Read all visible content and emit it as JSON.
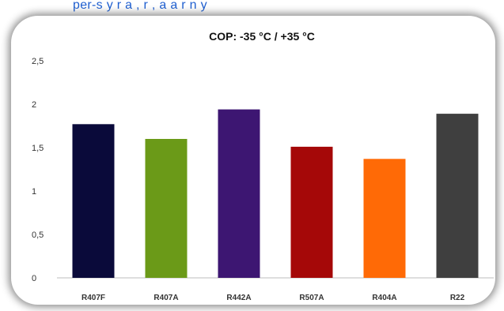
{
  "page": {
    "top_text": "per-s y   r   a  ,   r  ,  a   a   r   n   y"
  },
  "chart_data": {
    "type": "bar",
    "title": "COP: -35 °C / +35 °C",
    "categories": [
      "R407F",
      "R407A",
      "R442A",
      "R507A",
      "R404A",
      "R22"
    ],
    "values": [
      1.77,
      1.6,
      1.94,
      1.51,
      1.37,
      1.89
    ],
    "colors": [
      "#0a0a3a",
      "#6b9a18",
      "#3d1672",
      "#a50808",
      "#ff6a06",
      "#3f3f3f"
    ],
    "ylim": [
      0,
      2.5
    ],
    "yticks": [
      0,
      0.5,
      1,
      1.5,
      2,
      2.5
    ],
    "ytick_labels": [
      "0",
      "0,5",
      "1",
      "1,5",
      "2",
      "2,5"
    ],
    "grid": false,
    "legend": "none",
    "xlabel": "",
    "ylabel": ""
  }
}
